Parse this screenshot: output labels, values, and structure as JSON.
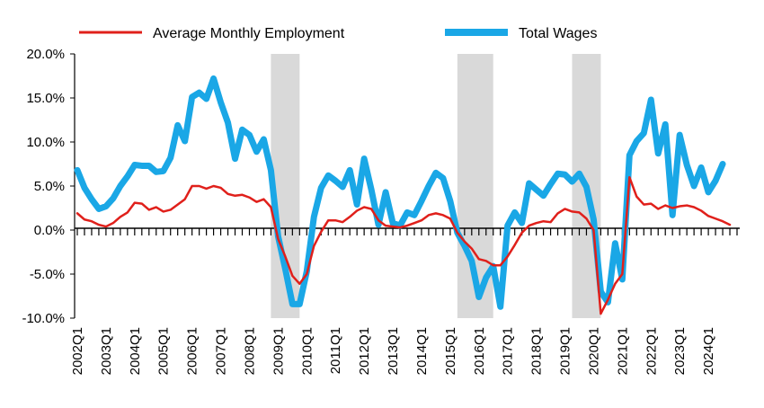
{
  "chart_data": {
    "type": "line",
    "title": "",
    "xlabel": "",
    "ylabel": "",
    "ylim": [
      -10,
      20
    ],
    "y_ticks": [
      "20.0%",
      "15.0%",
      "10.0%",
      "5.0%",
      "0.0%",
      "-5.0%",
      "-10.0%"
    ],
    "y_tick_values": [
      20,
      15,
      10,
      5,
      0,
      -5,
      -10
    ],
    "x_tick_labels": [
      "2002Q1",
      "2003Q1",
      "2004Q1",
      "2005Q1",
      "2006Q1",
      "2007Q1",
      "2008Q1",
      "2009Q1",
      "2010Q1",
      "2011Q1",
      "2012Q1",
      "2013Q1",
      "2014Q1",
      "2015Q1",
      "2016Q1",
      "2017Q1",
      "2018Q1",
      "2019Q1",
      "2020Q1",
      "2021Q1",
      "2022Q1",
      "2023Q1",
      "2024Q1"
    ],
    "quarters_count": 93,
    "legend_position": "top",
    "recession_shading": [
      {
        "start_quarter_index": 27,
        "end_quarter_index": 31,
        "color": "#d9d9d9"
      },
      {
        "start_quarter_index": 53,
        "end_quarter_index": 58,
        "color": "#d9d9d9"
      },
      {
        "start_quarter_index": 69,
        "end_quarter_index": 73,
        "color": "#d9d9d9"
      }
    ],
    "series": [
      {
        "name": "Average Monthly Employment",
        "color": "#e0201b",
        "values": [
          1.9,
          1.2,
          1.0,
          0.6,
          0.4,
          0.8,
          1.5,
          2.0,
          3.1,
          3.0,
          2.3,
          2.6,
          2.1,
          2.3,
          2.9,
          3.5,
          5.0,
          5.0,
          4.7,
          5.0,
          4.8,
          4.1,
          3.9,
          4.0,
          3.7,
          3.2,
          3.5,
          2.6,
          -1.0,
          -3.0,
          -5.2,
          -6.1,
          -5.0,
          -1.8,
          -0.2,
          1.1,
          1.1,
          0.9,
          1.5,
          2.2,
          2.6,
          2.4,
          1.1,
          0.5,
          0.4,
          0.3,
          0.5,
          0.8,
          1.1,
          1.7,
          1.9,
          1.7,
          1.3,
          -0.3,
          -1.3,
          -2.1,
          -3.3,
          -3.5,
          -4.0,
          -4.0,
          -3.0,
          -1.7,
          -0.3,
          0.5,
          0.8,
          1.0,
          0.9,
          1.9,
          2.4,
          2.1,
          2.0,
          1.3,
          0.0,
          -9.5,
          -7.9,
          -6.1,
          -5.0,
          6.0,
          3.8,
          2.9,
          3.0,
          2.4,
          2.8,
          2.5,
          2.7,
          2.8,
          2.6,
          2.2,
          1.6,
          1.3,
          1.0,
          0.6
        ]
      },
      {
        "name": "Total Wages",
        "color": "#1aa7e6",
        "values": [
          6.8,
          4.8,
          3.5,
          2.4,
          2.7,
          3.6,
          5.0,
          6.1,
          7.4,
          7.3,
          7.3,
          6.6,
          6.7,
          8.2,
          11.9,
          10.1,
          15.1,
          15.6,
          14.9,
          17.2,
          14.5,
          12.2,
          8.1,
          11.4,
          10.8,
          8.9,
          10.3,
          6.8,
          -0.7,
          -4.4,
          -8.4,
          -8.4,
          -4.7,
          1.5,
          4.8,
          6.2,
          5.6,
          4.9,
          6.8,
          2.9,
          8.1,
          4.6,
          0.6,
          4.3,
          0.8,
          0.5,
          2.0,
          1.7,
          3.3,
          5.0,
          6.5,
          5.9,
          3.3,
          -0.3,
          -1.8,
          -3.5,
          -7.6,
          -5.4,
          -4.1,
          -8.7,
          0.5,
          2.0,
          0.8,
          5.3,
          4.6,
          3.9,
          5.2,
          6.4,
          6.3,
          5.5,
          6.4,
          4.9,
          1.2,
          -7.0,
          -8.2,
          -1.5,
          -5.6,
          8.5,
          10.1,
          11.0,
          14.8,
          8.7,
          12.0,
          1.7,
          10.8,
          7.4,
          5.0,
          7.1,
          4.3,
          5.6,
          7.5
        ]
      }
    ]
  }
}
